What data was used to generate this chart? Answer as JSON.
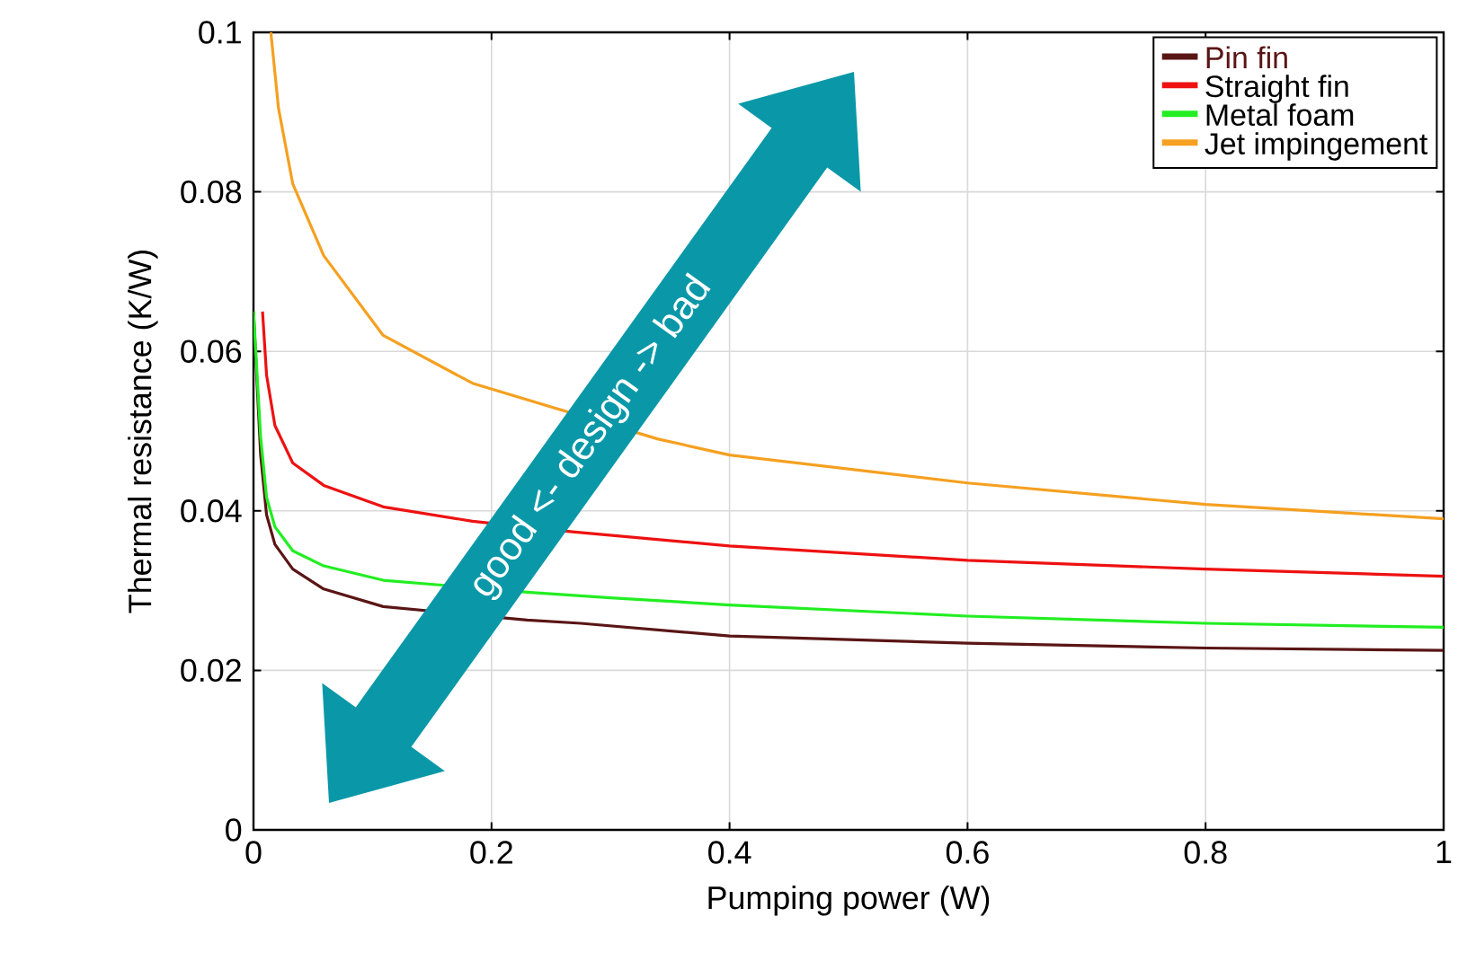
{
  "chart_data": {
    "type": "line",
    "xlabel": "Pumping power (W)",
    "ylabel": "Thermal resistance (K/W)",
    "xlim": [
      0,
      1
    ],
    "ylim": [
      0,
      0.1
    ],
    "xticks": [
      0,
      0.2,
      0.4,
      0.6,
      0.8,
      1
    ],
    "yticks": [
      0,
      0.02,
      0.04,
      0.06,
      0.08,
      0.1
    ],
    "grid": true,
    "legend": "top right",
    "marker": "none",
    "line_style": "solid",
    "annotations": [
      "good <- design -> bad"
    ],
    "series": [
      {
        "name": "Pin fin",
        "color": "#5a1515",
        "x": [
          0,
          0.006,
          0.011,
          0.018,
          0.033,
          0.059,
          0.109,
          0.23,
          0.275,
          0.4,
          0.6,
          0.8,
          1
        ],
        "values": [
          0.065,
          0.047,
          0.0395,
          0.0358,
          0.0327,
          0.0302,
          0.028,
          0.0263,
          0.0259,
          0.0243,
          0.0234,
          0.0228,
          0.0225
        ]
      },
      {
        "name": "Straight fin",
        "color": "#ee1111",
        "x": [
          0.0076,
          0.011,
          0.018,
          0.033,
          0.059,
          0.109,
          0.184,
          0.266,
          0.4,
          0.6,
          0.8,
          1
        ],
        "values": [
          0.065,
          0.057,
          0.0507,
          0.046,
          0.0432,
          0.0405,
          0.0387,
          0.0374,
          0.0356,
          0.0338,
          0.0327,
          0.0318
        ]
      },
      {
        "name": "Metal foam",
        "color": "#22ee22",
        "x": [
          0,
          0.006,
          0.011,
          0.018,
          0.033,
          0.059,
          0.109,
          0.23,
          0.3,
          0.4,
          0.6,
          0.8,
          1
        ],
        "values": [
          0.065,
          0.0493,
          0.0417,
          0.038,
          0.035,
          0.0331,
          0.0313,
          0.0298,
          0.0291,
          0.0282,
          0.0268,
          0.0259,
          0.0254
        ]
      },
      {
        "name": "Jet impingement",
        "color": "#f5a020",
        "x": [
          0.0146,
          0.021,
          0.033,
          0.059,
          0.109,
          0.184,
          0.34,
          0.4,
          0.6,
          0.8,
          1
        ],
        "values": [
          0.1,
          0.0905,
          0.081,
          0.072,
          0.062,
          0.056,
          0.049,
          0.047,
          0.0435,
          0.0408,
          0.039
        ]
      }
    ]
  }
}
